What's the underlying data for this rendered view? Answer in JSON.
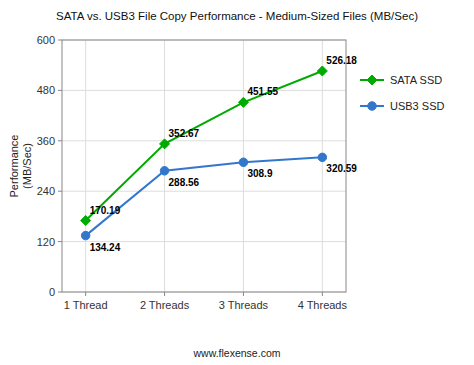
{
  "chart_data": {
    "type": "line",
    "title": "SATA vs. USB3 File Copy Performance - Medium-Sized Files (MB/Sec)",
    "categories": [
      "1 Thread",
      "2 Threads",
      "3 Threads",
      "4 Threads"
    ],
    "series": [
      {
        "name": "SATA SSD",
        "color": "#00aa00",
        "marker": "diamond",
        "values": [
          170.19,
          352.67,
          451.55,
          526.18
        ]
      },
      {
        "name": "USB3 SSD",
        "color": "#3377cc",
        "marker": "circle",
        "values": [
          134.24,
          288.56,
          308.9,
          320.59
        ]
      }
    ],
    "ylabel": "Performance\n(MB/Sec)",
    "ylim": [
      0,
      600
    ],
    "yticks": [
      0,
      120,
      240,
      360,
      480,
      600
    ],
    "grid": true,
    "legend": "right",
    "data_labels": true,
    "annotations": [
      "www.flexense.com"
    ]
  }
}
